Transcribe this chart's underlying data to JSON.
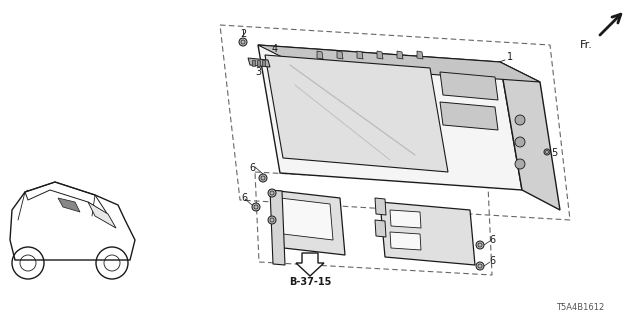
{
  "bg_color": "#ffffff",
  "line_color": "#1a1a1a",
  "doc_number": "T5A4B1612",
  "figsize": [
    6.4,
    3.2
  ],
  "dpi": 100
}
